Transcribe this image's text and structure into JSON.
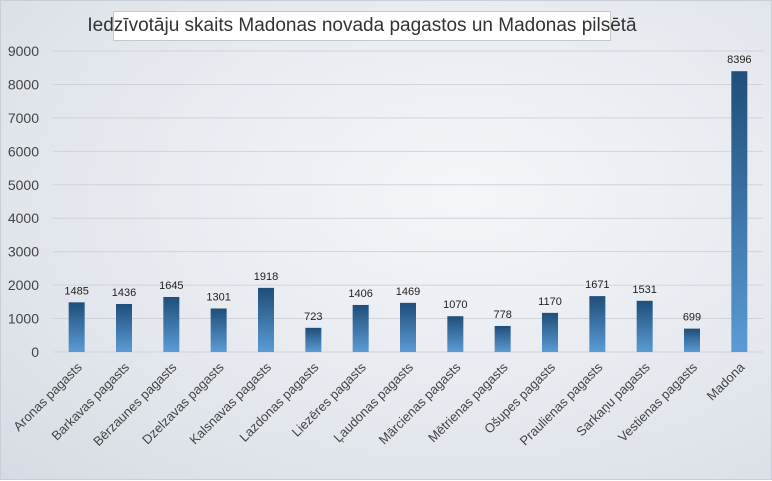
{
  "chart_data": {
    "type": "bar",
    "title": "Iedzīvotāju skaits Madonas novada pagastos un Madonas pilsētā",
    "xlabel": "",
    "ylabel": "",
    "ylim": [
      0,
      9000
    ],
    "yticks": [
      "0",
      "1000",
      "2000",
      "3000",
      "4000",
      "5000",
      "6000",
      "7000",
      "8000",
      "9000"
    ],
    "grid": true,
    "legend": "none",
    "categories": [
      "Aronas pagasts",
      "Barkavas pagasts",
      "Bērzaunes pagasts",
      "Dzelzavas pagasts",
      "Kalsnavas pagasts",
      "Lazdonas pagasts",
      "Liezēres pagasts",
      "Ļaudonas pagasts",
      "Mārcienas pagasts",
      "Mētrienas pagasts",
      "Ošupes pagasts",
      "Praulienas pagasts",
      "Sarkaņu pagasts",
      "Vestienas pagasts",
      "Madona"
    ],
    "values": [
      1485,
      1436,
      1645,
      1301,
      1918,
      723,
      1406,
      1469,
      1070,
      778,
      1170,
      1671,
      1531,
      699,
      8396
    ],
    "value_labels": [
      "1485",
      "1436",
      "1645",
      "1301",
      "1918",
      "723",
      "1406",
      "1469",
      "1070",
      "778",
      "1170",
      "1671",
      "1531",
      "699",
      "8396"
    ],
    "colors": {
      "bar_top": "#1f4e79",
      "bar_bottom": "#5b9bd5",
      "grid": "#d0d4da",
      "axis_text": "#444444",
      "label_text": "#222222"
    }
  }
}
